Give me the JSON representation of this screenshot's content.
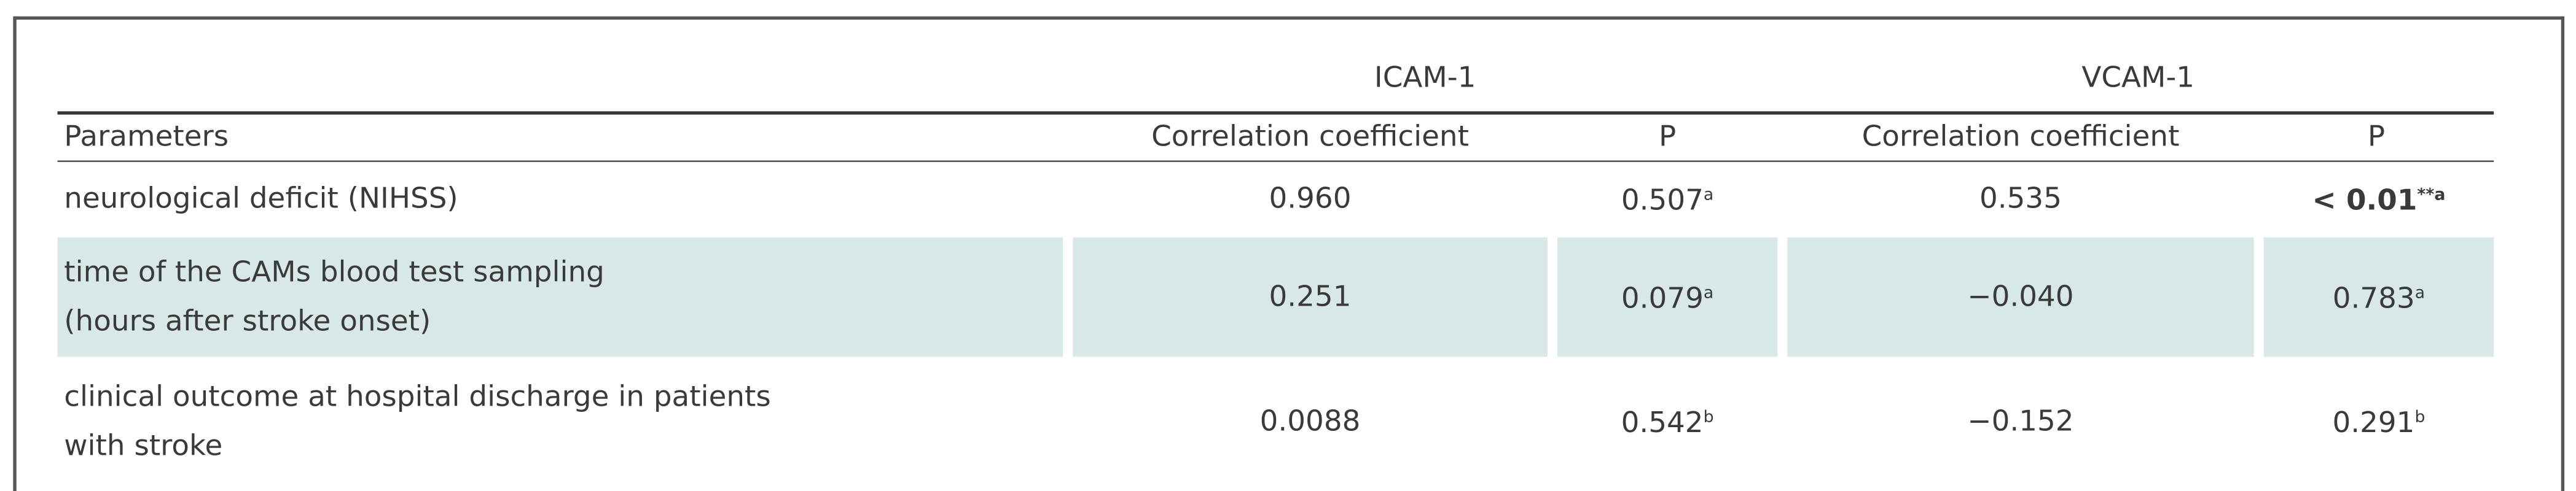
{
  "table": {
    "groups": [
      "ICAM-1",
      "VCAM-1"
    ],
    "header": [
      "Parameters",
      "Correlation coefficient",
      "P",
      "Correlation coefficient",
      "P"
    ],
    "rows": [
      {
        "parameter": [
          "neurological deficit (NIHSS)"
        ],
        "shaded": false,
        "values": [
          {
            "text": "0.960"
          },
          {
            "text": "0.507",
            "sup": "a"
          },
          {
            "text": "0.535"
          },
          {
            "text": "< 0.01",
            "sup": "**a",
            "bold": true
          }
        ]
      },
      {
        "parameter": [
          "time of the CAMs blood test sampling",
          "(hours after stroke onset)"
        ],
        "shaded": true,
        "values": [
          {
            "text": "0.251"
          },
          {
            "text": "0.079",
            "sup": "a"
          },
          {
            "text": "−0.040"
          },
          {
            "text": "0.783",
            "sup": "a"
          }
        ]
      },
      {
        "parameter": [
          "clinical outcome at hospital discharge in patients",
          "with stroke"
        ],
        "shaded": false,
        "values": [
          {
            "text": "0.0088"
          },
          {
            "text": "0.542",
            "sup": "b"
          },
          {
            "text": "−0.152"
          },
          {
            "text": "0.291",
            "sup": "b"
          }
        ]
      }
    ]
  }
}
